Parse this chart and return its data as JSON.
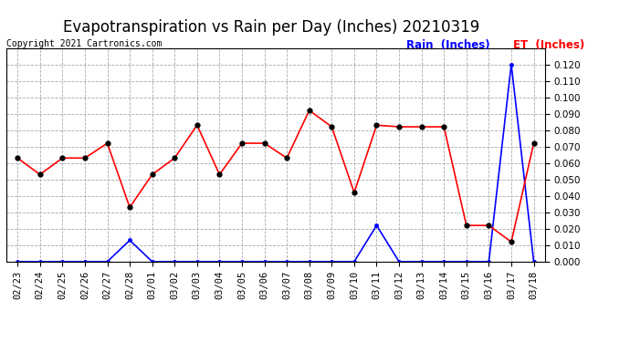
{
  "title": "Evapotranspiration vs Rain per Day (Inches) 20210319",
  "copyright_text": "Copyright 2021 Cartronics.com",
  "dates": [
    "02/23",
    "02/24",
    "02/25",
    "02/26",
    "02/27",
    "02/28",
    "03/01",
    "03/02",
    "03/03",
    "03/04",
    "03/05",
    "03/06",
    "03/07",
    "03/08",
    "03/09",
    "03/10",
    "03/11",
    "03/12",
    "03/13",
    "03/14",
    "03/15",
    "03/16",
    "03/17",
    "03/18"
  ],
  "rain": [
    0.0,
    0.0,
    0.0,
    0.0,
    0.0,
    0.013,
    0.0,
    0.0,
    0.0,
    0.0,
    0.0,
    0.0,
    0.0,
    0.0,
    0.0,
    0.0,
    0.022,
    0.0,
    0.0,
    0.0,
    0.0,
    0.0,
    0.12,
    0.0
  ],
  "et": [
    0.063,
    0.053,
    0.063,
    0.063,
    0.072,
    0.033,
    0.053,
    0.063,
    0.083,
    0.053,
    0.072,
    0.072,
    0.063,
    0.092,
    0.082,
    0.042,
    0.083,
    0.082,
    0.082,
    0.082,
    0.022,
    0.022,
    0.012,
    0.072
  ],
  "rain_color": "#0000ff",
  "et_color": "#ff0000",
  "background_color": "#ffffff",
  "grid_color": "#aaaaaa",
  "ylim": [
    0.0,
    0.13
  ],
  "ytick_max": 0.12,
  "ytick_interval": 0.01,
  "title_fontsize": 12,
  "tick_fontsize": 7.5,
  "copyright_fontsize": 7,
  "legend_rain": "Rain  (Inches)",
  "legend_et": "ET  (Inches)"
}
